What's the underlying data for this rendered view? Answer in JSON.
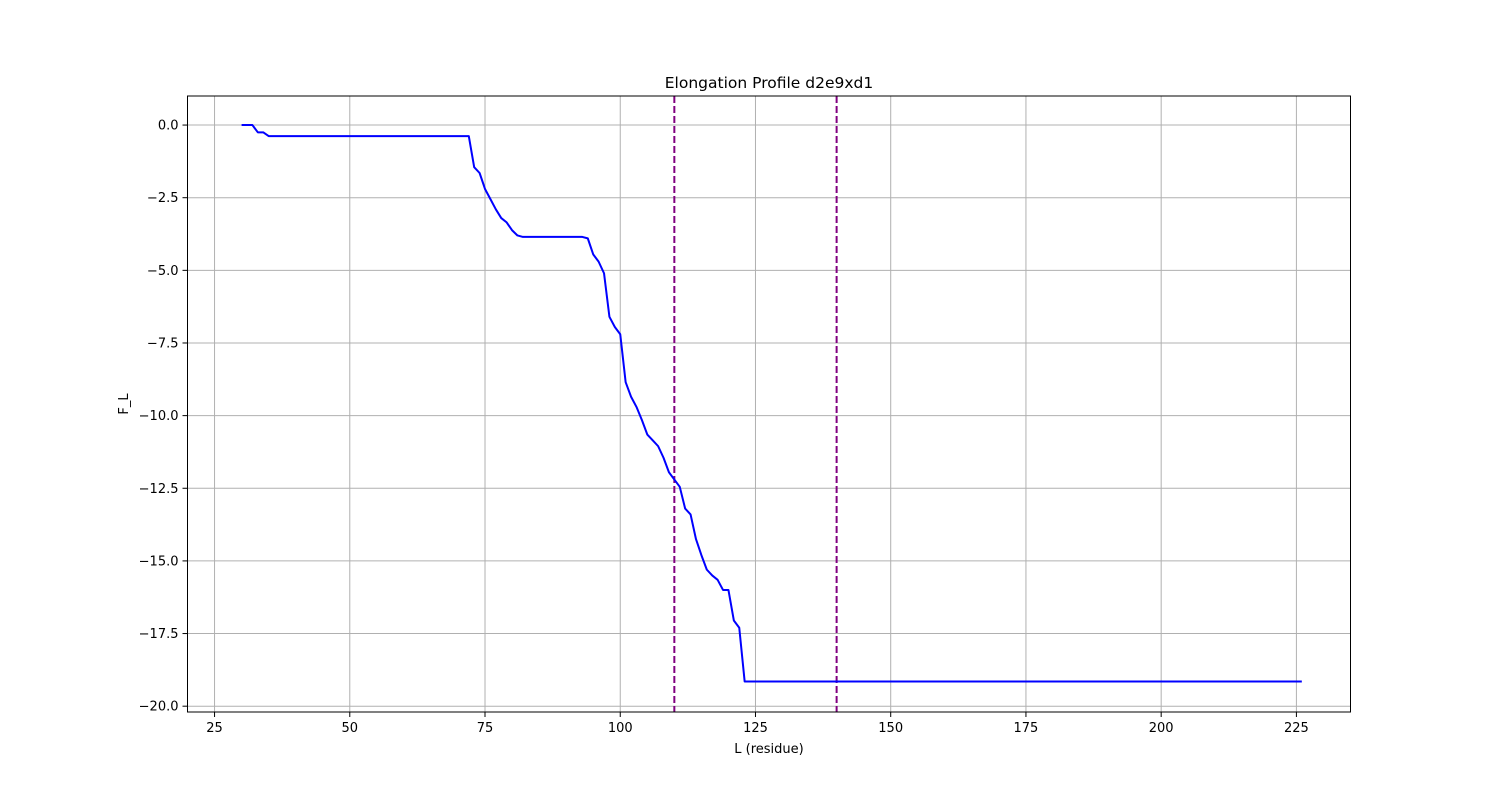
{
  "chart_data": {
    "type": "line",
    "title": "Elongation Profile d2e9xd1",
    "xlabel": "L (residue)",
    "ylabel": "F_L",
    "xlim": [
      20,
      235
    ],
    "ylim": [
      -20.2,
      1.0
    ],
    "grid": true,
    "xticks": [
      25,
      50,
      75,
      100,
      125,
      150,
      175,
      200,
      225
    ],
    "xtick_labels": [
      "25",
      "50",
      "75",
      "100",
      "125",
      "150",
      "175",
      "200",
      "225"
    ],
    "yticks": [
      0,
      -2.5,
      -5,
      -7.5,
      -10,
      -12.5,
      -15,
      -17.5,
      -20
    ],
    "ytick_labels": [
      "0.0",
      "−2.5",
      "−5.0",
      "−7.5",
      "−10.0",
      "−12.5",
      "−15.0",
      "−17.5",
      "−20.0"
    ],
    "series": [
      {
        "color": "#0000ff",
        "x": [
          30,
          31,
          32,
          33,
          34,
          35,
          40,
          50,
          60,
          70,
          72,
          73,
          74,
          75,
          76,
          77,
          78,
          79,
          80,
          81,
          82,
          85,
          90,
          93,
          94,
          95,
          96,
          97,
          98,
          99,
          100,
          101,
          102,
          103,
          104,
          105,
          106,
          107,
          108,
          109,
          110,
          111,
          112,
          113,
          114,
          115,
          116,
          117,
          118,
          119,
          120,
          121,
          122,
          123,
          125,
          150,
          175,
          200,
          226
        ],
        "y": [
          0.0,
          0.0,
          0.0,
          -0.25,
          -0.25,
          -0.38,
          -0.38,
          -0.38,
          -0.38,
          -0.38,
          -0.38,
          -1.45,
          -1.65,
          -2.2,
          -2.55,
          -2.9,
          -3.2,
          -3.35,
          -3.62,
          -3.8,
          -3.85,
          -3.85,
          -3.85,
          -3.85,
          -3.9,
          -4.45,
          -4.7,
          -5.1,
          -6.6,
          -6.95,
          -7.2,
          -8.85,
          -9.35,
          -9.7,
          -10.15,
          -10.65,
          -10.85,
          -11.05,
          -11.45,
          -11.95,
          -12.2,
          -12.45,
          -13.2,
          -13.4,
          -14.25,
          -14.8,
          -15.3,
          -15.5,
          -15.65,
          -16.0,
          -16.0,
          -17.05,
          -17.3,
          -19.15,
          -19.15,
          -19.15,
          -19.15,
          -19.15,
          -19.15
        ]
      }
    ],
    "vlines": [
      {
        "x": 110,
        "color": "#800080",
        "style": "dashed"
      },
      {
        "x": 140,
        "color": "#800080",
        "style": "dashed"
      }
    ],
    "colors": {
      "grid": "#b0b0b0",
      "axes": "#000000"
    }
  }
}
